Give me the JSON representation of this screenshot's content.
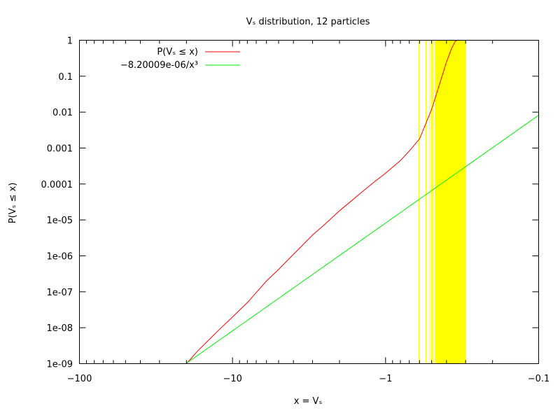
{
  "chart_data": {
    "type": "line",
    "title": "Vₛ distribution, 12 particles",
    "xlabel": "x = Vₛ",
    "ylabel": "P(Vₛ ≤ x)",
    "x_scale": "negative-log",
    "y_scale": "log",
    "xlim": [
      -100,
      -0.1
    ],
    "ylim": [
      1e-09,
      1
    ],
    "grid": false,
    "legend_position": "top-left",
    "x_ticks": [
      {
        "value": -100,
        "label": "−100"
      },
      {
        "value": -10,
        "label": "−10"
      },
      {
        "value": -1,
        "label": "−1"
      },
      {
        "value": -0.1,
        "label": "−0.1"
      }
    ],
    "y_ticks": [
      {
        "value": 1e-09,
        "label": "1e-09"
      },
      {
        "value": 1e-08,
        "label": "1e-08"
      },
      {
        "value": 1e-07,
        "label": "1e-07"
      },
      {
        "value": 1e-06,
        "label": "1e-06"
      },
      {
        "value": 1e-05,
        "label": "1e-05"
      },
      {
        "value": 0.0001,
        "label": "0.0001"
      },
      {
        "value": 0.001,
        "label": "0.001"
      },
      {
        "value": 0.01,
        "label": "0.01"
      },
      {
        "value": 0.1,
        "label": "0.1"
      },
      {
        "value": 1,
        "label": "1"
      }
    ],
    "series": [
      {
        "name": "P(Vₛ ≤ x)",
        "color": "#ff0000",
        "points": [
          [
            -20,
            1e-09
          ],
          [
            -17,
            2.2e-09
          ],
          [
            -14,
            5e-09
          ],
          [
            -12,
            9.5e-09
          ],
          [
            -10,
            2e-08
          ],
          [
            -8,
            5e-08
          ],
          [
            -6,
            2e-07
          ],
          [
            -5,
            4.2e-07
          ],
          [
            -4,
            1.1e-06
          ],
          [
            -3,
            3.8e-06
          ],
          [
            -2.5,
            7.5e-06
          ],
          [
            -2,
            1.8e-05
          ],
          [
            -1.5,
            5e-05
          ],
          [
            -1.2,
            0.00011
          ],
          [
            -1,
            0.0002
          ],
          [
            -0.8,
            0.00045
          ],
          [
            -0.7,
            0.00083
          ],
          [
            -0.6,
            0.0018
          ],
          [
            -0.5,
            0.012
          ],
          [
            -0.45,
            0.05
          ],
          [
            -0.4,
            0.25
          ],
          [
            -0.37,
            0.6
          ],
          [
            -0.35,
            0.95
          ],
          [
            -0.34,
            1
          ]
        ]
      },
      {
        "name": "−8.20009e-06/x³",
        "color": "#00ee00",
        "formula_coefficient": -8.20009e-06,
        "formula_power": 3
      }
    ],
    "vertical_lines": {
      "color": "#ffff00",
      "x": [
        -0.606,
        -0.545,
        -0.515,
        -0.5,
        -0.489,
        -0.475,
        -0.46,
        -0.445,
        -0.43,
        -0.415,
        -0.4,
        -0.386,
        -0.372,
        -0.358,
        -0.345,
        -0.333,
        -0.322,
        -0.311
      ],
      "band_x": [
        -0.475,
        -0.299
      ]
    }
  }
}
